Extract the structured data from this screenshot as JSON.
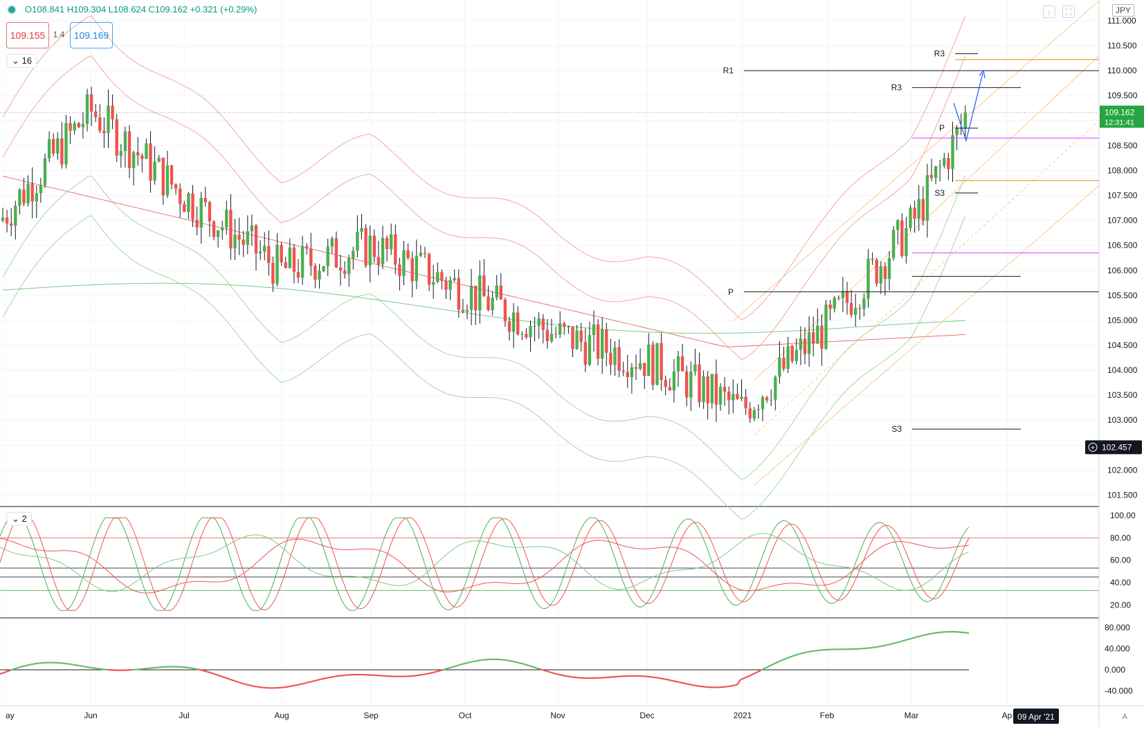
{
  "header": {
    "ohlc": "O108.841 H109.304 L108.624 C109.162 +0.321 (+0.29%)",
    "sell_price": "109.155",
    "spread": "1.4",
    "buy_price": "109.169",
    "indicator_count_main": "16",
    "indicator_count_osc": "2",
    "currency": "JPY",
    "auto_label": "A"
  },
  "price_axis": {
    "ticks": [
      "111.000",
      "110.500",
      "110.000",
      "109.500",
      "109.000",
      "108.500",
      "108.000",
      "107.500",
      "107.000",
      "106.500",
      "106.000",
      "105.500",
      "105.000",
      "104.500",
      "104.000",
      "103.500",
      "103.000",
      "102.500",
      "102.000",
      "101.500"
    ],
    "last_price": "109.162",
    "countdown": "12:31:41",
    "crosshair_price": "102.457"
  },
  "osc1_axis": {
    "ticks": [
      "100.00",
      "80.00",
      "60.00",
      "40.00",
      "20.00"
    ]
  },
  "osc2_axis": {
    "ticks": [
      "80.000",
      "40.000",
      "0.000",
      "-40.000"
    ]
  },
  "time_axis": {
    "labels": [
      "ay",
      "Jun",
      "Jul",
      "Aug",
      "Sep",
      "Oct",
      "Nov",
      "Dec",
      "2021",
      "Feb",
      "Mar",
      "Ap"
    ],
    "crosshair_date": "09 Apr '21"
  },
  "pivot_labels": [
    "R1",
    "P",
    "R3",
    "R3",
    "P",
    "S3",
    "S3"
  ],
  "colors": {
    "up": "#4caf50",
    "down": "#ef5350",
    "r1_line": "#131722",
    "orange_level": "#f0a030",
    "magenta_level": "#e040fb",
    "arrow": "#2962ff",
    "last_price_bg": "#26a641"
  },
  "chart_data": {
    "type": "candlestick",
    "symbol_currency": "JPY",
    "ylim": [
      101.3,
      111.3
    ],
    "close_approx": [
      {
        "x": "Jun",
        "y": 109.2
      },
      {
        "x": "Jul",
        "y": 107.5
      },
      {
        "x": "Aug",
        "y": 106.0
      },
      {
        "x": "Sep",
        "y": 106.5
      },
      {
        "x": "Oct",
        "y": 105.6
      },
      {
        "x": "Nov",
        "y": 104.7
      },
      {
        "x": "Dec",
        "y": 104.2
      },
      {
        "x": "2021",
        "y": 103.2
      },
      {
        "x": "Feb",
        "y": 104.9
      },
      {
        "x": "Mar",
        "y": 106.9
      },
      {
        "x": "last",
        "y": 109.162
      }
    ],
    "levels": [
      {
        "label": "R1",
        "y": 110.0
      },
      {
        "label": "P",
        "y": 105.57
      },
      {
        "label": "R3",
        "y": 109.66
      },
      {
        "label": "R3",
        "y": 110.34
      },
      {
        "label": "P",
        "y": 108.85
      },
      {
        "label": "S3",
        "y": 107.55
      },
      {
        "label": "S3",
        "y": 102.82
      }
    ],
    "osc1_ylim": [
      10,
      105
    ],
    "osc2_ylim": [
      -60,
      90
    ]
  }
}
